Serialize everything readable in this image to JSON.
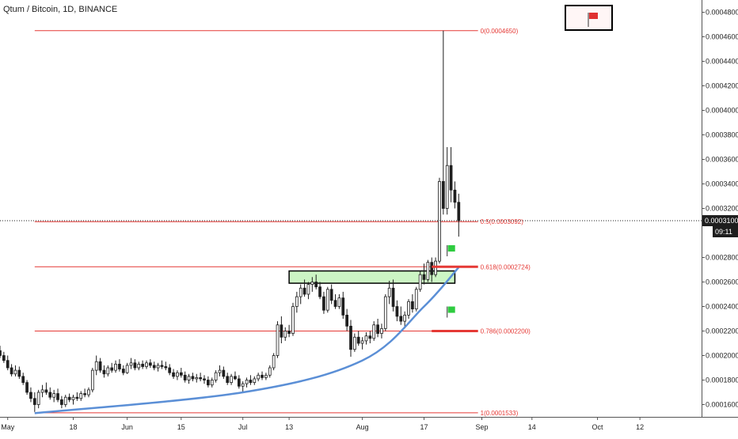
{
  "chart_data": {
    "type": "candlestick",
    "title": "Qtum / Bitcoin, 1D, BINANCE",
    "price_axis": {
      "ylim": [
        0.00015,
        0.00049
      ],
      "ticks": [
        "0.0004800",
        "0.0004600",
        "0.0004400",
        "0.0004200",
        "0.0004000",
        "0.0003800",
        "0.0003600",
        "0.0003400",
        "0.0003200",
        "0.0002800",
        "0.0002600",
        "0.0002400",
        "0.0002200",
        "0.0002000",
        "0.0001800",
        "0.0001600"
      ],
      "current_price": "0.0003100",
      "countdown": "09:11"
    },
    "time_axis": {
      "start": "2019-04-29",
      "end": "2019-10-28",
      "labels": [
        {
          "text": "May",
          "date": "2019-05-01"
        },
        {
          "text": "18",
          "date": "2019-05-18"
        },
        {
          "text": "Jun",
          "date": "2019-06-01"
        },
        {
          "text": "15",
          "date": "2019-06-15"
        },
        {
          "text": "Jul",
          "date": "2019-07-01"
        },
        {
          "text": "13",
          "date": "2019-07-13"
        },
        {
          "text": "Aug",
          "date": "2019-08-01"
        },
        {
          "text": "17",
          "date": "2019-08-17"
        },
        {
          "text": "Sep",
          "date": "2019-09-01"
        },
        {
          "text": "14",
          "date": "2019-09-14"
        },
        {
          "text": "Oct",
          "date": "2019-10-01"
        },
        {
          "text": "12",
          "date": "2019-10-12"
        }
      ]
    },
    "fib_levels": [
      {
        "ratio": "0",
        "price": 0.000465,
        "label": "0(0.0004650)"
      },
      {
        "ratio": "0.5",
        "price": 0.0003092,
        "label": "0.5(0.0003092)"
      },
      {
        "ratio": "0.618",
        "price": 0.0002724,
        "label": "0.618(0.0002724)"
      },
      {
        "ratio": "0.786",
        "price": 0.00022,
        "label": "0.786(0.0002200)"
      },
      {
        "ratio": "1",
        "price": 0.0001533,
        "label": "1(0.0001533)"
      }
    ],
    "fib_range": {
      "start": "2019-05-08",
      "end": "2019-08-31"
    },
    "breakout_zone": {
      "date_start": "2019-07-13",
      "date_end": "2019-08-25",
      "price_low": 0.000259,
      "price_high": 0.000269,
      "color": "#ccf5c4"
    },
    "support_curve": [
      {
        "date": "2019-05-08",
        "price": 0.000153
      },
      {
        "date": "2019-07-01",
        "price": 0.00017
      },
      {
        "date": "2019-08-01",
        "price": 0.000196
      },
      {
        "date": "2019-08-17",
        "price": 0.00024
      },
      {
        "date": "2019-08-26",
        "price": 0.000272
      }
    ],
    "target_markers": [
      {
        "date_start": "2019-08-19",
        "date_end": "2019-08-31",
        "price": 0.0002724,
        "flag_date": "2019-08-23",
        "flag_price": 0.00029
      },
      {
        "date_start": "2019-08-19",
        "date_end": "2019-08-31",
        "price": 0.00022,
        "flag_date": "2019-08-23",
        "flag_price": 0.00024
      }
    ],
    "candles": [
      {
        "date": "2019-04-29",
        "o": 0.000204,
        "h": 0.000208,
        "l": 0.000198,
        "c": 0.0002
      },
      {
        "date": "2019-04-30",
        "o": 0.0002,
        "h": 0.000203,
        "l": 0.000194,
        "c": 0.000196
      },
      {
        "date": "2019-05-01",
        "o": 0.000196,
        "h": 0.0002,
        "l": 0.000188,
        "c": 0.00019
      },
      {
        "date": "2019-05-02",
        "o": 0.00019,
        "h": 0.000193,
        "l": 0.000183,
        "c": 0.000185
      },
      {
        "date": "2019-05-03",
        "o": 0.000185,
        "h": 0.000192,
        "l": 0.000183,
        "c": 0.000188
      },
      {
        "date": "2019-05-04",
        "o": 0.000188,
        "h": 0.000191,
        "l": 0.000181,
        "c": 0.000183
      },
      {
        "date": "2019-05-05",
        "o": 0.000183,
        "h": 0.000186,
        "l": 0.000176,
        "c": 0.000178
      },
      {
        "date": "2019-05-06",
        "o": 0.000178,
        "h": 0.00018,
        "l": 0.000168,
        "c": 0.00017
      },
      {
        "date": "2019-05-07",
        "o": 0.00017,
        "h": 0.000174,
        "l": 0.000162,
        "c": 0.000165
      },
      {
        "date": "2019-05-08",
        "o": 0.000165,
        "h": 0.00017,
        "l": 0.000154,
        "c": 0.00016
      },
      {
        "date": "2019-05-09",
        "o": 0.00016,
        "h": 0.000172,
        "l": 0.000157,
        "c": 0.00017
      },
      {
        "date": "2019-05-10",
        "o": 0.00017,
        "h": 0.000176,
        "l": 0.000166,
        "c": 0.000172
      },
      {
        "date": "2019-05-11",
        "o": 0.000172,
        "h": 0.000178,
        "l": 0.000168,
        "c": 0.00017
      },
      {
        "date": "2019-05-12",
        "o": 0.00017,
        "h": 0.000174,
        "l": 0.000164,
        "c": 0.000166
      },
      {
        "date": "2019-05-13",
        "o": 0.000166,
        "h": 0.000172,
        "l": 0.000162,
        "c": 0.000169
      },
      {
        "date": "2019-05-14",
        "o": 0.000169,
        "h": 0.000173,
        "l": 0.000162,
        "c": 0.000164
      },
      {
        "date": "2019-05-15",
        "o": 0.000164,
        "h": 0.000167,
        "l": 0.000157,
        "c": 0.00016
      },
      {
        "date": "2019-05-16",
        "o": 0.00016,
        "h": 0.000168,
        "l": 0.000158,
        "c": 0.000166
      },
      {
        "date": "2019-05-17",
        "o": 0.000166,
        "h": 0.000169,
        "l": 0.000162,
        "c": 0.000164
      },
      {
        "date": "2019-05-18",
        "o": 0.000164,
        "h": 0.000168,
        "l": 0.00016,
        "c": 0.000166
      },
      {
        "date": "2019-05-19",
        "o": 0.000166,
        "h": 0.00017,
        "l": 0.000163,
        "c": 0.000165
      },
      {
        "date": "2019-05-20",
        "o": 0.000165,
        "h": 0.000171,
        "l": 0.000163,
        "c": 0.000169
      },
      {
        "date": "2019-05-21",
        "o": 0.000169,
        "h": 0.000173,
        "l": 0.000166,
        "c": 0.000168
      },
      {
        "date": "2019-05-22",
        "o": 0.000168,
        "h": 0.000174,
        "l": 0.000166,
        "c": 0.000172
      },
      {
        "date": "2019-05-23",
        "o": 0.000172,
        "h": 0.00019,
        "l": 0.00017,
        "c": 0.000188
      },
      {
        "date": "2019-05-24",
        "o": 0.000188,
        "h": 0.0002,
        "l": 0.000184,
        "c": 0.000195
      },
      {
        "date": "2019-05-25",
        "o": 0.000195,
        "h": 0.000198,
        "l": 0.000186,
        "c": 0.000188
      },
      {
        "date": "2019-05-26",
        "o": 0.000188,
        "h": 0.000192,
        "l": 0.000182,
        "c": 0.000185
      },
      {
        "date": "2019-05-27",
        "o": 0.000185,
        "h": 0.000192,
        "l": 0.000183,
        "c": 0.00019
      },
      {
        "date": "2019-05-28",
        "o": 0.00019,
        "h": 0.000194,
        "l": 0.000186,
        "c": 0.000188
      },
      {
        "date": "2019-05-29",
        "o": 0.000188,
        "h": 0.000196,
        "l": 0.000186,
        "c": 0.000193
      },
      {
        "date": "2019-05-30",
        "o": 0.000193,
        "h": 0.000197,
        "l": 0.000187,
        "c": 0.000189
      },
      {
        "date": "2019-05-31",
        "o": 0.000189,
        "h": 0.000192,
        "l": 0.000184,
        "c": 0.000186
      },
      {
        "date": "2019-06-01",
        "o": 0.000186,
        "h": 0.000194,
        "l": 0.000185,
        "c": 0.000192
      },
      {
        "date": "2019-06-02",
        "o": 0.000192,
        "h": 0.000198,
        "l": 0.000189,
        "c": 0.000194
      },
      {
        "date": "2019-06-03",
        "o": 0.000194,
        "h": 0.000197,
        "l": 0.000188,
        "c": 0.00019
      },
      {
        "date": "2019-06-04",
        "o": 0.00019,
        "h": 0.000195,
        "l": 0.000188,
        "c": 0.000193
      },
      {
        "date": "2019-06-05",
        "o": 0.000193,
        "h": 0.000196,
        "l": 0.000189,
        "c": 0.000191
      },
      {
        "date": "2019-06-06",
        "o": 0.000191,
        "h": 0.000196,
        "l": 0.000189,
        "c": 0.000194
      },
      {
        "date": "2019-06-07",
        "o": 0.000194,
        "h": 0.000197,
        "l": 0.00019,
        "c": 0.000192
      },
      {
        "date": "2019-06-08",
        "o": 0.000192,
        "h": 0.000195,
        "l": 0.000188,
        "c": 0.00019
      },
      {
        "date": "2019-06-09",
        "o": 0.00019,
        "h": 0.000194,
        "l": 0.000187,
        "c": 0.000192
      },
      {
        "date": "2019-06-10",
        "o": 0.000192,
        "h": 0.000196,
        "l": 0.000189,
        "c": 0.000191
      },
      {
        "date": "2019-06-11",
        "o": 0.000191,
        "h": 0.000195,
        "l": 0.000188,
        "c": 0.00019
      },
      {
        "date": "2019-06-12",
        "o": 0.00019,
        "h": 0.000193,
        "l": 0.000184,
        "c": 0.000186
      },
      {
        "date": "2019-06-13",
        "o": 0.000186,
        "h": 0.000189,
        "l": 0.000181,
        "c": 0.000183
      },
      {
        "date": "2019-06-14",
        "o": 0.000183,
        "h": 0.000188,
        "l": 0.00018,
        "c": 0.000186
      },
      {
        "date": "2019-06-15",
        "o": 0.000186,
        "h": 0.00019,
        "l": 0.000182,
        "c": 0.000184
      },
      {
        "date": "2019-06-16",
        "o": 0.000184,
        "h": 0.000187,
        "l": 0.000178,
        "c": 0.00018
      },
      {
        "date": "2019-06-17",
        "o": 0.00018,
        "h": 0.000185,
        "l": 0.000177,
        "c": 0.000183
      },
      {
        "date": "2019-06-18",
        "o": 0.000183,
        "h": 0.000186,
        "l": 0.000179,
        "c": 0.000181
      },
      {
        "date": "2019-06-19",
        "o": 0.000181,
        "h": 0.000185,
        "l": 0.000178,
        "c": 0.000182
      },
      {
        "date": "2019-06-20",
        "o": 0.000182,
        "h": 0.000186,
        "l": 0.000179,
        "c": 0.000181
      },
      {
        "date": "2019-06-21",
        "o": 0.000181,
        "h": 0.000184,
        "l": 0.000177,
        "c": 0.00018
      },
      {
        "date": "2019-06-22",
        "o": 0.00018,
        "h": 0.000183,
        "l": 0.000174,
        "c": 0.000176
      },
      {
        "date": "2019-06-23",
        "o": 0.000176,
        "h": 0.000182,
        "l": 0.000174,
        "c": 0.00018
      },
      {
        "date": "2019-06-24",
        "o": 0.00018,
        "h": 0.000188,
        "l": 0.000178,
        "c": 0.000186
      },
      {
        "date": "2019-06-25",
        "o": 0.000186,
        "h": 0.000192,
        "l": 0.000183,
        "c": 0.000188
      },
      {
        "date": "2019-06-26",
        "o": 0.000188,
        "h": 0.000191,
        "l": 0.000181,
        "c": 0.000183
      },
      {
        "date": "2019-06-27",
        "o": 0.000183,
        "h": 0.000186,
        "l": 0.000176,
        "c": 0.000178
      },
      {
        "date": "2019-06-28",
        "o": 0.000178,
        "h": 0.000185,
        "l": 0.000176,
        "c": 0.000183
      },
      {
        "date": "2019-06-29",
        "o": 0.000183,
        "h": 0.000187,
        "l": 0.00018,
        "c": 0.000181
      },
      {
        "date": "2019-06-30",
        "o": 0.000181,
        "h": 0.000184,
        "l": 0.000173,
        "c": 0.000175
      },
      {
        "date": "2019-07-01",
        "o": 0.000175,
        "h": 0.000179,
        "l": 0.00017,
        "c": 0.000177
      },
      {
        "date": "2019-07-02",
        "o": 0.000177,
        "h": 0.000182,
        "l": 0.000174,
        "c": 0.00018
      },
      {
        "date": "2019-07-03",
        "o": 0.00018,
        "h": 0.000184,
        "l": 0.000176,
        "c": 0.000178
      },
      {
        "date": "2019-07-04",
        "o": 0.000178,
        "h": 0.000183,
        "l": 0.000176,
        "c": 0.000181
      },
      {
        "date": "2019-07-05",
        "o": 0.000181,
        "h": 0.000186,
        "l": 0.000179,
        "c": 0.000184
      },
      {
        "date": "2019-07-06",
        "o": 0.000184,
        "h": 0.000187,
        "l": 0.00018,
        "c": 0.000182
      },
      {
        "date": "2019-07-07",
        "o": 0.000182,
        "h": 0.000186,
        "l": 0.00018,
        "c": 0.000184
      },
      {
        "date": "2019-07-08",
        "o": 0.000184,
        "h": 0.000192,
        "l": 0.000182,
        "c": 0.00019
      },
      {
        "date": "2019-07-09",
        "o": 0.00019,
        "h": 0.000202,
        "l": 0.000188,
        "c": 0.0002
      },
      {
        "date": "2019-07-10",
        "o": 0.0002,
        "h": 0.000228,
        "l": 0.000198,
        "c": 0.000225
      },
      {
        "date": "2019-07-11",
        "o": 0.000225,
        "h": 0.000232,
        "l": 0.00021,
        "c": 0.000215
      },
      {
        "date": "2019-07-12",
        "o": 0.000215,
        "h": 0.000223,
        "l": 0.000212,
        "c": 0.00022
      },
      {
        "date": "2019-07-13",
        "o": 0.00022,
        "h": 0.000225,
        "l": 0.000215,
        "c": 0.000218
      },
      {
        "date": "2019-07-14",
        "o": 0.000218,
        "h": 0.000243,
        "l": 0.000216,
        "c": 0.00024
      },
      {
        "date": "2019-07-15",
        "o": 0.00024,
        "h": 0.000252,
        "l": 0.000235,
        "c": 0.000248
      },
      {
        "date": "2019-07-16",
        "o": 0.000248,
        "h": 0.000258,
        "l": 0.000242,
        "c": 0.000255
      },
      {
        "date": "2019-07-17",
        "o": 0.000255,
        "h": 0.000262,
        "l": 0.000248,
        "c": 0.00025
      },
      {
        "date": "2019-07-18",
        "o": 0.00025,
        "h": 0.00026,
        "l": 0.000246,
        "c": 0.000258
      },
      {
        "date": "2019-07-19",
        "o": 0.000258,
        "h": 0.000264,
        "l": 0.000252,
        "c": 0.00026
      },
      {
        "date": "2019-07-20",
        "o": 0.00026,
        "h": 0.000266,
        "l": 0.000254,
        "c": 0.000256
      },
      {
        "date": "2019-07-21",
        "o": 0.000256,
        "h": 0.00026,
        "l": 0.000246,
        "c": 0.000248
      },
      {
        "date": "2019-07-22",
        "o": 0.000248,
        "h": 0.000252,
        "l": 0.000234,
        "c": 0.000237
      },
      {
        "date": "2019-07-23",
        "o": 0.000237,
        "h": 0.000256,
        "l": 0.000235,
        "c": 0.000254
      },
      {
        "date": "2019-07-24",
        "o": 0.000254,
        "h": 0.000258,
        "l": 0.000242,
        "c": 0.000245
      },
      {
        "date": "2019-07-25",
        "o": 0.000245,
        "h": 0.00025,
        "l": 0.000238,
        "c": 0.00024
      },
      {
        "date": "2019-07-26",
        "o": 0.00024,
        "h": 0.00025,
        "l": 0.000238,
        "c": 0.000247
      },
      {
        "date": "2019-07-27",
        "o": 0.000247,
        "h": 0.000252,
        "l": 0.00023,
        "c": 0.000233
      },
      {
        "date": "2019-07-28",
        "o": 0.000233,
        "h": 0.000238,
        "l": 0.00022,
        "c": 0.000224
      },
      {
        "date": "2019-07-29",
        "o": 0.000224,
        "h": 0.000229,
        "l": 0.000199,
        "c": 0.000205
      },
      {
        "date": "2019-07-30",
        "o": 0.000205,
        "h": 0.000218,
        "l": 0.000203,
        "c": 0.000215
      },
      {
        "date": "2019-07-31",
        "o": 0.000215,
        "h": 0.00022,
        "l": 0.000208,
        "c": 0.00021
      },
      {
        "date": "2019-08-01",
        "o": 0.00021,
        "h": 0.000215,
        "l": 0.000205,
        "c": 0.000212
      },
      {
        "date": "2019-08-02",
        "o": 0.000212,
        "h": 0.000219,
        "l": 0.000209,
        "c": 0.000216
      },
      {
        "date": "2019-08-03",
        "o": 0.000216,
        "h": 0.00022,
        "l": 0.00021,
        "c": 0.000214
      },
      {
        "date": "2019-08-04",
        "o": 0.000214,
        "h": 0.000228,
        "l": 0.000212,
        "c": 0.000225
      },
      {
        "date": "2019-08-05",
        "o": 0.000225,
        "h": 0.00023,
        "l": 0.000215,
        "c": 0.000218
      },
      {
        "date": "2019-08-06",
        "o": 0.000218,
        "h": 0.000226,
        "l": 0.000214,
        "c": 0.000222
      },
      {
        "date": "2019-08-07",
        "o": 0.000222,
        "h": 0.00025,
        "l": 0.00022,
        "c": 0.000248
      },
      {
        "date": "2019-08-08",
        "o": 0.000248,
        "h": 0.000261,
        "l": 0.000242,
        "c": 0.000255
      },
      {
        "date": "2019-08-09",
        "o": 0.000255,
        "h": 0.000262,
        "l": 0.000236,
        "c": 0.00024
      },
      {
        "date": "2019-08-10",
        "o": 0.00024,
        "h": 0.000245,
        "l": 0.000228,
        "c": 0.000232
      },
      {
        "date": "2019-08-11",
        "o": 0.000232,
        "h": 0.00024,
        "l": 0.000225,
        "c": 0.000228
      },
      {
        "date": "2019-08-12",
        "o": 0.000228,
        "h": 0.000236,
        "l": 0.000223,
        "c": 0.000233
      },
      {
        "date": "2019-08-13",
        "o": 0.000233,
        "h": 0.000246,
        "l": 0.00023,
        "c": 0.000244
      },
      {
        "date": "2019-08-14",
        "o": 0.000244,
        "h": 0.00025,
        "l": 0.000235,
        "c": 0.000238
      },
      {
        "date": "2019-08-15",
        "o": 0.000238,
        "h": 0.000256,
        "l": 0.000236,
        "c": 0.000254
      },
      {
        "date": "2019-08-16",
        "o": 0.000254,
        "h": 0.000269,
        "l": 0.000252,
        "c": 0.000266
      },
      {
        "date": "2019-08-17",
        "o": 0.000266,
        "h": 0.000275,
        "l": 0.000258,
        "c": 0.000262
      },
      {
        "date": "2019-08-18",
        "o": 0.000262,
        "h": 0.000278,
        "l": 0.00026,
        "c": 0.000276
      },
      {
        "date": "2019-08-19",
        "o": 0.000276,
        "h": 0.00028,
        "l": 0.00026,
        "c": 0.000266
      },
      {
        "date": "2019-08-20",
        "o": 0.000266,
        "h": 0.00028,
        "l": 0.000264,
        "c": 0.000277
      },
      {
        "date": "2019-08-21",
        "o": 0.000277,
        "h": 0.000345,
        "l": 0.000275,
        "c": 0.000342
      },
      {
        "date": "2019-08-22",
        "o": 0.000342,
        "h": 0.000465,
        "l": 0.000315,
        "c": 0.00032
      },
      {
        "date": "2019-08-23",
        "o": 0.00032,
        "h": 0.00037,
        "l": 0.000315,
        "c": 0.000355
      },
      {
        "date": "2019-08-24",
        "o": 0.000355,
        "h": 0.00037,
        "l": 0.000325,
        "c": 0.000335
      },
      {
        "date": "2019-08-25",
        "o": 0.000335,
        "h": 0.000342,
        "l": 0.00032,
        "c": 0.000325
      },
      {
        "date": "2019-08-26",
        "o": 0.000325,
        "h": 0.000332,
        "l": 0.000297,
        "c": 0.00031
      }
    ]
  }
}
